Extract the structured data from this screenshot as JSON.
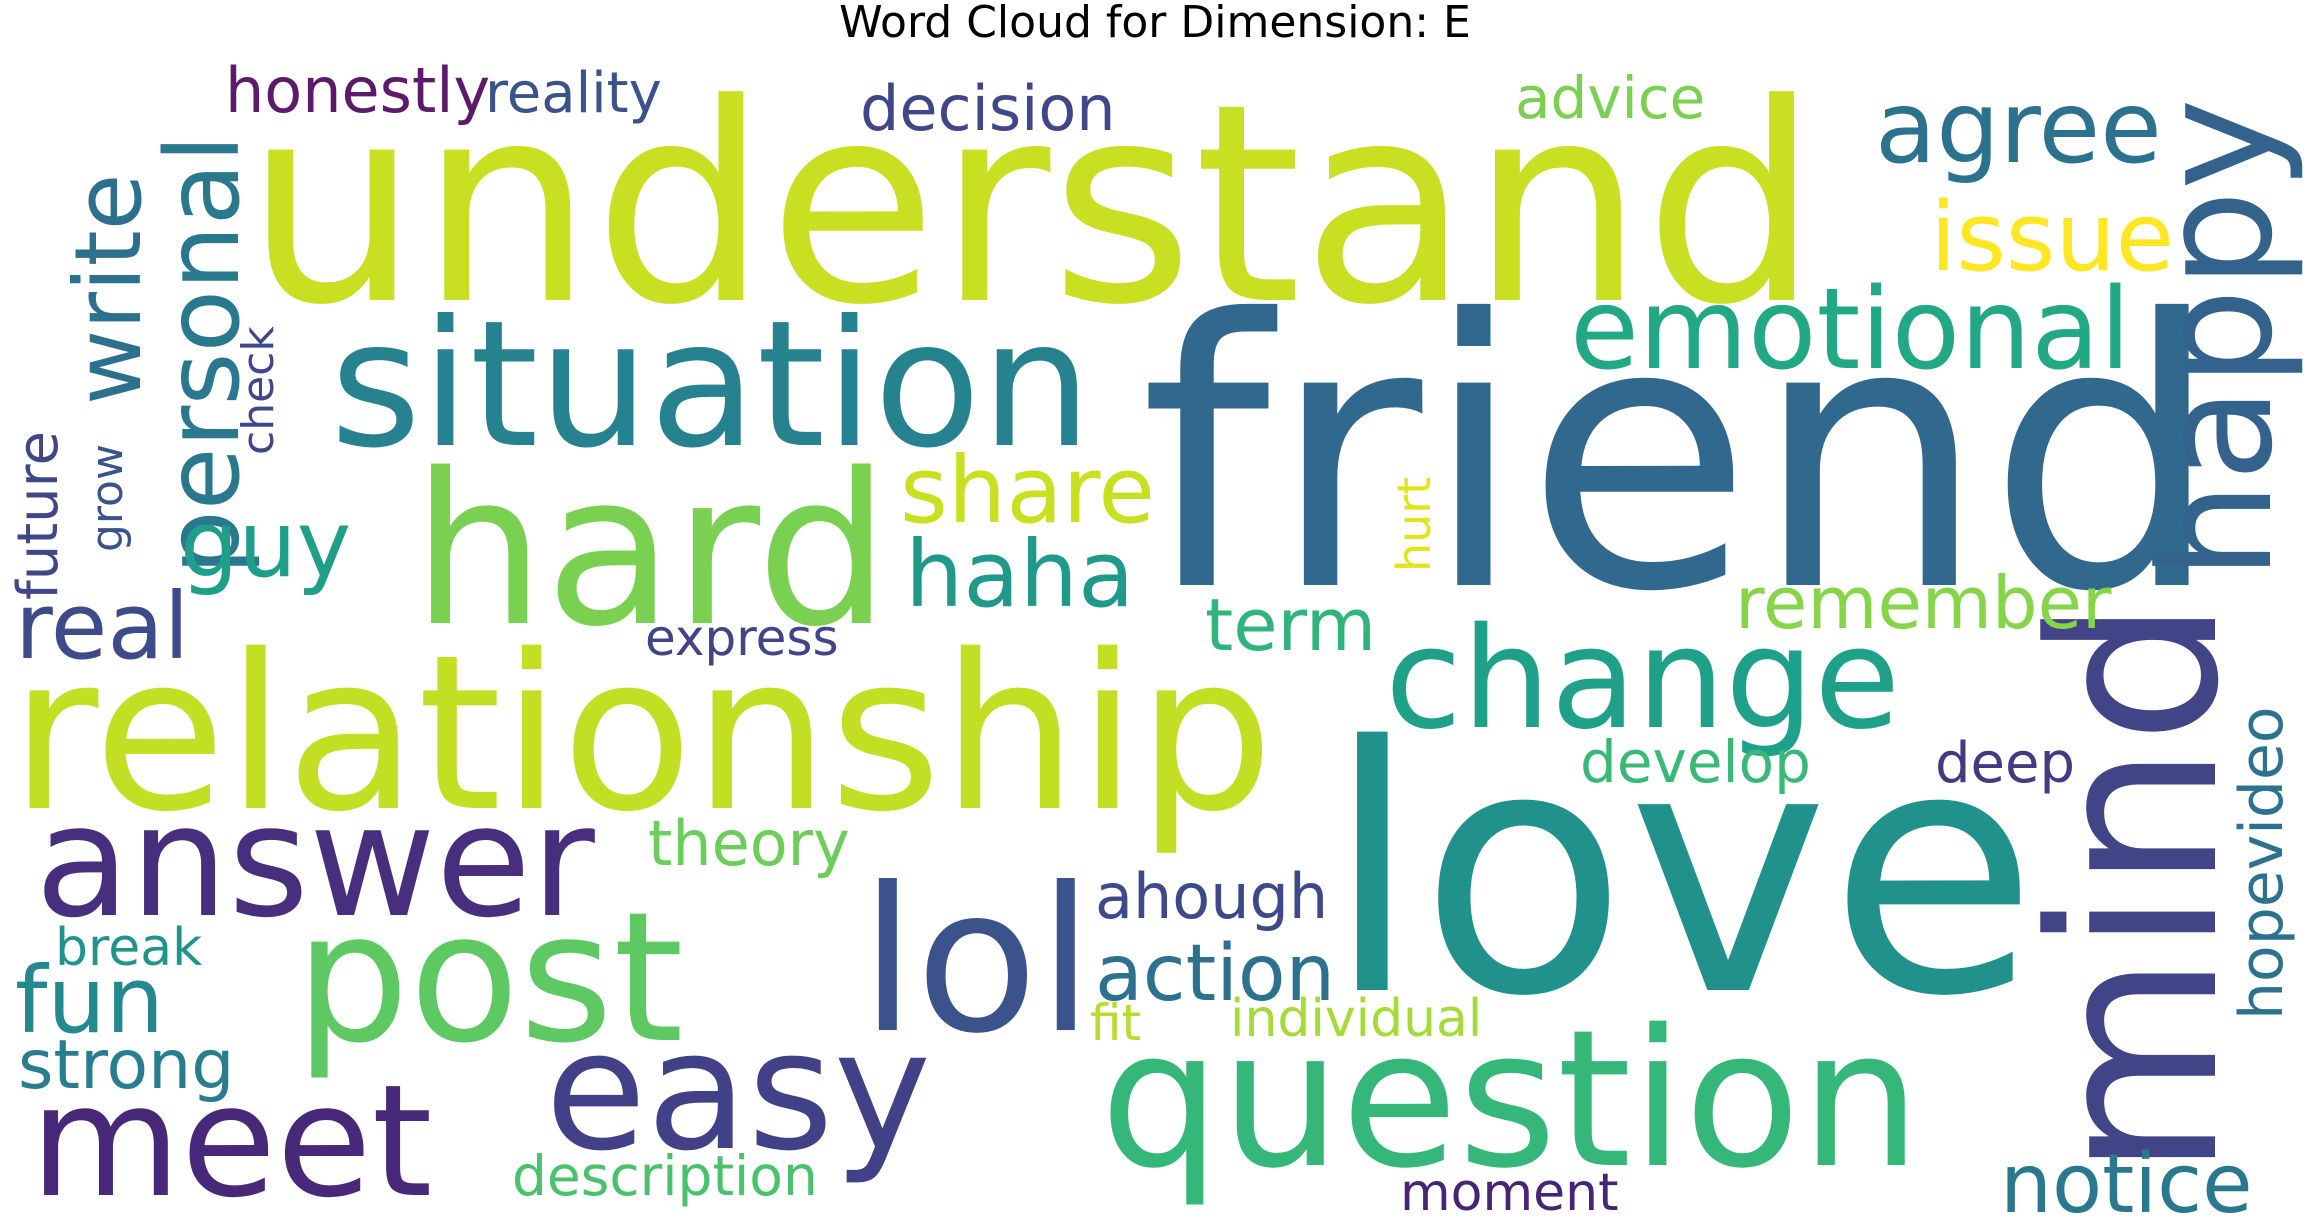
{
  "title": "Word Cloud for Dimension: E",
  "words": [
    {
      "text": "understand",
      "color": "#c8df22"
    },
    {
      "text": "friend",
      "color": "#31688e"
    },
    {
      "text": "relationship",
      "color": "#c2df23"
    },
    {
      "text": "love",
      "color": "#21918c"
    },
    {
      "text": "situation",
      "color": "#26828e"
    },
    {
      "text": "hard",
      "color": "#7ad151"
    },
    {
      "text": "question",
      "color": "#35b779"
    },
    {
      "text": "answer",
      "color": "#472f7d"
    },
    {
      "text": "post",
      "color": "#5ec962"
    },
    {
      "text": "lol",
      "color": "#3b528b"
    },
    {
      "text": "mind",
      "color": "#414487"
    },
    {
      "text": "change",
      "color": "#1fa088"
    },
    {
      "text": "happy",
      "color": "#33638d"
    },
    {
      "text": "easy",
      "color": "#424086"
    },
    {
      "text": "meet",
      "color": "#482878"
    },
    {
      "text": "emotional",
      "color": "#22a884"
    },
    {
      "text": "agree",
      "color": "#2c728e"
    },
    {
      "text": "issue",
      "color": "#fde725"
    },
    {
      "text": "personal",
      "color": "#2a788e"
    },
    {
      "text": "write",
      "color": "#2d708e"
    },
    {
      "text": "guy",
      "color": "#1f9e89"
    },
    {
      "text": "share",
      "color": "#c8e020"
    },
    {
      "text": "haha",
      "color": "#1f9a8a"
    },
    {
      "text": "remember",
      "color": "#86d549"
    },
    {
      "text": "notice",
      "color": "#2a788e"
    },
    {
      "text": "real",
      "color": "#3e4a89"
    },
    {
      "text": "term",
      "color": "#2fb47c"
    },
    {
      "text": "fun",
      "color": "#23898e"
    },
    {
      "text": "strong",
      "color": "#287d8e"
    },
    {
      "text": "action",
      "color": "#2c728e"
    },
    {
      "text": "ahough",
      "color": "#3e4989"
    },
    {
      "text": "decision",
      "color": "#3f4788"
    },
    {
      "text": "honestly",
      "color": "#5c1a6b"
    },
    {
      "text": "reality",
      "color": "#3b528b"
    },
    {
      "text": "advice",
      "color": "#7ad151"
    },
    {
      "text": "theory",
      "color": "#6ccd5a"
    },
    {
      "text": "develop",
      "color": "#38b977"
    },
    {
      "text": "deep",
      "color": "#443a83"
    },
    {
      "text": "hopevideo",
      "color": "#2c728e"
    },
    {
      "text": "description",
      "color": "#4ac16d"
    },
    {
      "text": "moment",
      "color": "#482475"
    },
    {
      "text": "individual",
      "color": "#a5db36"
    },
    {
      "text": "fit",
      "color": "#b5de2b"
    },
    {
      "text": "break",
      "color": "#20938c"
    },
    {
      "text": "express",
      "color": "#414487"
    },
    {
      "text": "hurt",
      "color": "#e2e418"
    },
    {
      "text": "check",
      "color": "#3f4788"
    },
    {
      "text": "future",
      "color": "#3f4788"
    },
    {
      "text": "grow",
      "color": "#3b528b"
    }
  ]
}
